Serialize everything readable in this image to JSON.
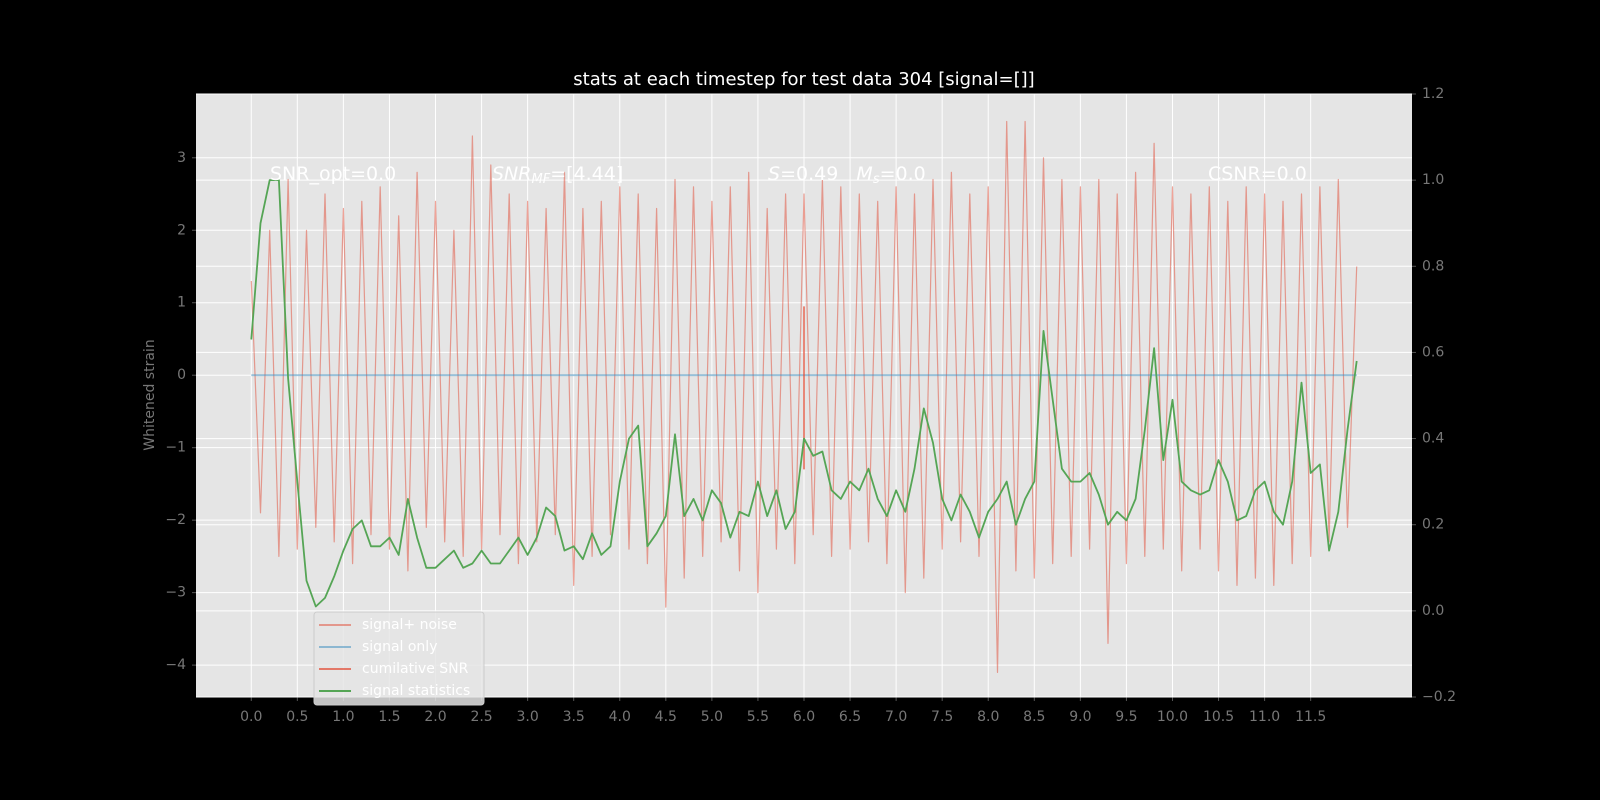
{
  "chart_data": {
    "type": "line",
    "title": "stats at each timestep for test data 304 [signal=[]]",
    "y_label": "Whitened strain",
    "x": [
      0,
      0.1,
      0.2,
      0.3,
      0.4,
      0.5,
      0.6,
      0.7,
      0.8,
      0.9,
      1,
      1.1,
      1.2,
      1.3,
      1.4,
      1.5,
      1.6,
      1.7,
      1.8,
      1.9,
      2,
      2.1,
      2.2,
      2.3,
      2.4,
      2.5,
      2.6,
      2.7,
      2.8,
      2.9,
      3,
      3.1,
      3.2,
      3.3,
      3.4,
      3.5,
      3.6,
      3.7,
      3.8,
      3.9,
      4,
      4.1,
      4.2,
      4.3,
      4.4,
      4.5,
      4.6,
      4.7,
      4.8,
      4.9,
      5,
      5.1,
      5.2,
      5.3,
      5.4,
      5.5,
      5.6,
      5.7,
      5.8,
      5.9,
      6,
      6.1,
      6.2,
      6.3,
      6.4,
      6.5,
      6.6,
      6.7,
      6.8,
      6.9,
      7,
      7.1,
      7.2,
      7.3,
      7.4,
      7.5,
      7.6,
      7.7,
      7.8,
      7.9,
      8,
      8.1,
      8.2,
      8.3,
      8.4,
      8.5,
      8.6,
      8.7,
      8.8,
      8.9,
      9,
      9.1,
      9.2,
      9.3,
      9.4,
      9.5,
      9.6,
      9.7,
      9.8,
      9.9,
      10,
      10.1,
      10.2,
      10.3,
      10.4,
      10.5,
      10.6,
      10.7,
      10.8,
      10.9,
      11,
      11.1,
      11.2,
      11.3,
      11.4,
      11.5,
      11.6,
      11.7,
      11.8,
      11.9,
      12
    ],
    "series": [
      {
        "name": "signal+ noise",
        "color": "#e24a33",
        "opacity": 0.5,
        "values": [
          1.3,
          -1.9,
          2.0,
          -2.5,
          2.7,
          -2.4,
          2.0,
          -2.1,
          2.5,
          -2.3,
          2.3,
          -2.6,
          2.4,
          -2.2,
          2.6,
          -2.4,
          2.2,
          -2.7,
          2.8,
          -2.1,
          2.4,
          -2.3,
          2.0,
          -2.5,
          3.3,
          -2.4,
          2.9,
          -2.2,
          2.5,
          -2.6,
          2.4,
          -2.3,
          2.3,
          -2.2,
          2.8,
          -2.9,
          2.3,
          -2.5,
          2.4,
          -2.2,
          2.6,
          -2.4,
          2.5,
          -2.6,
          2.3,
          -3.2,
          2.7,
          -2.8,
          2.6,
          -2.5,
          2.4,
          -2.3,
          2.6,
          -2.7,
          2.8,
          -3.0,
          2.3,
          -2.4,
          2.5,
          -2.6,
          2.5,
          -2.2,
          2.7,
          -2.5,
          2.6,
          -2.4,
          2.5,
          -2.3,
          2.4,
          -2.6,
          2.6,
          -3.0,
          2.5,
          -2.8,
          2.7,
          -2.4,
          2.8,
          -2.3,
          2.5,
          -2.5,
          2.6,
          -4.1,
          3.5,
          -2.7,
          3.5,
          -2.8,
          3.0,
          -2.6,
          2.7,
          -2.5,
          2.6,
          -2.4,
          2.7,
          -3.7,
          2.5,
          -2.6,
          2.8,
          -2.5,
          3.2,
          -2.4,
          2.6,
          -2.7,
          2.5,
          -2.4,
          2.6,
          -2.7,
          2.4,
          -2.9,
          2.6,
          -2.8,
          2.5,
          -2.9,
          2.4,
          -2.6,
          2.5,
          -2.5,
          2.6,
          -2.3,
          2.7,
          -2.1,
          1.5
        ]
      },
      {
        "name": "signal only",
        "color": "#348abd",
        "opacity": 0.5,
        "x": [
          0,
          12
        ],
        "values": [
          0,
          0
        ]
      },
      {
        "name": "cumilative SNR",
        "color": "#e24a33",
        "opacity": 0.7,
        "x": [
          6,
          6
        ],
        "values": [
          0.95,
          -1.3
        ]
      },
      {
        "name": "signal statistics",
        "color": "#55a555",
        "opacity": 1,
        "axis": "y2",
        "values": [
          0.63,
          0.9,
          1.0,
          1.0,
          0.54,
          0.3,
          0.07,
          0.01,
          0.03,
          0.08,
          0.14,
          0.19,
          0.21,
          0.15,
          0.15,
          0.17,
          0.13,
          0.26,
          0.17,
          0.1,
          0.1,
          0.12,
          0.14,
          0.1,
          0.11,
          0.14,
          0.11,
          0.11,
          0.14,
          0.17,
          0.13,
          0.17,
          0.24,
          0.22,
          0.14,
          0.15,
          0.12,
          0.18,
          0.13,
          0.15,
          0.3,
          0.4,
          0.43,
          0.15,
          0.18,
          0.22,
          0.41,
          0.22,
          0.26,
          0.21,
          0.28,
          0.25,
          0.17,
          0.23,
          0.22,
          0.3,
          0.22,
          0.28,
          0.19,
          0.23,
          0.4,
          0.36,
          0.37,
          0.28,
          0.26,
          0.3,
          0.28,
          0.33,
          0.26,
          0.22,
          0.28,
          0.23,
          0.33,
          0.47,
          0.39,
          0.26,
          0.21,
          0.27,
          0.23,
          0.17,
          0.23,
          0.26,
          0.3,
          0.2,
          0.26,
          0.3,
          0.65,
          0.49,
          0.33,
          0.3,
          0.3,
          0.32,
          0.27,
          0.2,
          0.23,
          0.21,
          0.26,
          0.42,
          0.61,
          0.35,
          0.49,
          0.3,
          0.28,
          0.27,
          0.28,
          0.35,
          0.3,
          0.21,
          0.22,
          0.28,
          0.3,
          0.23,
          0.2,
          0.3,
          0.53,
          0.32,
          0.34,
          0.14,
          0.23,
          0.42,
          0.58
        ]
      }
    ],
    "annotations": [
      [
        {
          "text": "SNR_opt=0.0"
        }
      ],
      [
        {
          "text": "SNR",
          "italic": true
        },
        {
          "text": "MF",
          "italic": true,
          "sub": true
        },
        {
          "text": "=[4.44]"
        }
      ],
      [
        {
          "text": "S",
          "italic": true
        },
        {
          "text": "=0.49   "
        },
        {
          "text": "M",
          "italic": true
        },
        {
          "text": "s",
          "italic": true,
          "sub": true
        },
        {
          "text": "=0.0"
        }
      ],
      [
        {
          "text": "CSNR=0.0"
        }
      ]
    ],
    "xlim": [
      -0.6,
      12.6
    ],
    "ylim": [
      -4.44,
      3.88
    ],
    "y2lim": [
      -0.2,
      1.2
    ],
    "xticks": [
      {
        "value": 0,
        "label": "0.0"
      },
      0.5,
      {
        "value": 1,
        "label": "1.0"
      },
      1.5,
      {
        "value": 2,
        "label": "2.0"
      },
      2.5,
      {
        "value": 3,
        "label": "3.0"
      },
      3.5,
      {
        "value": 4,
        "label": "4.0"
      },
      4.5,
      {
        "value": 5,
        "label": "5.0"
      },
      5.5,
      {
        "value": 6,
        "label": "6.0"
      },
      6.5,
      {
        "value": 7,
        "label": "7.0"
      },
      7.5,
      {
        "value": 8,
        "label": "8.0"
      },
      8.5,
      {
        "value": 9,
        "label": "9.0"
      },
      9.5,
      {
        "value": 10,
        "label": "10.0"
      },
      10.5,
      {
        "value": 11,
        "label": "11.0"
      },
      11.5
    ],
    "yticks": [
      {
        "value": -4,
        "label": "−4"
      },
      {
        "value": -3,
        "label": "−3"
      },
      {
        "value": -2,
        "label": "−2"
      },
      {
        "value": -1,
        "label": "−1"
      },
      0,
      1,
      2,
      3
    ],
    "y2ticks": [
      {
        "value": -0.2,
        "label": "−0.2"
      },
      {
        "value": 0,
        "label": "0.0"
      },
      0.2,
      0.4,
      0.6,
      0.8,
      {
        "value": 1,
        "label": "1.0"
      },
      1.2
    ],
    "grid": true,
    "legend": "lower left"
  }
}
